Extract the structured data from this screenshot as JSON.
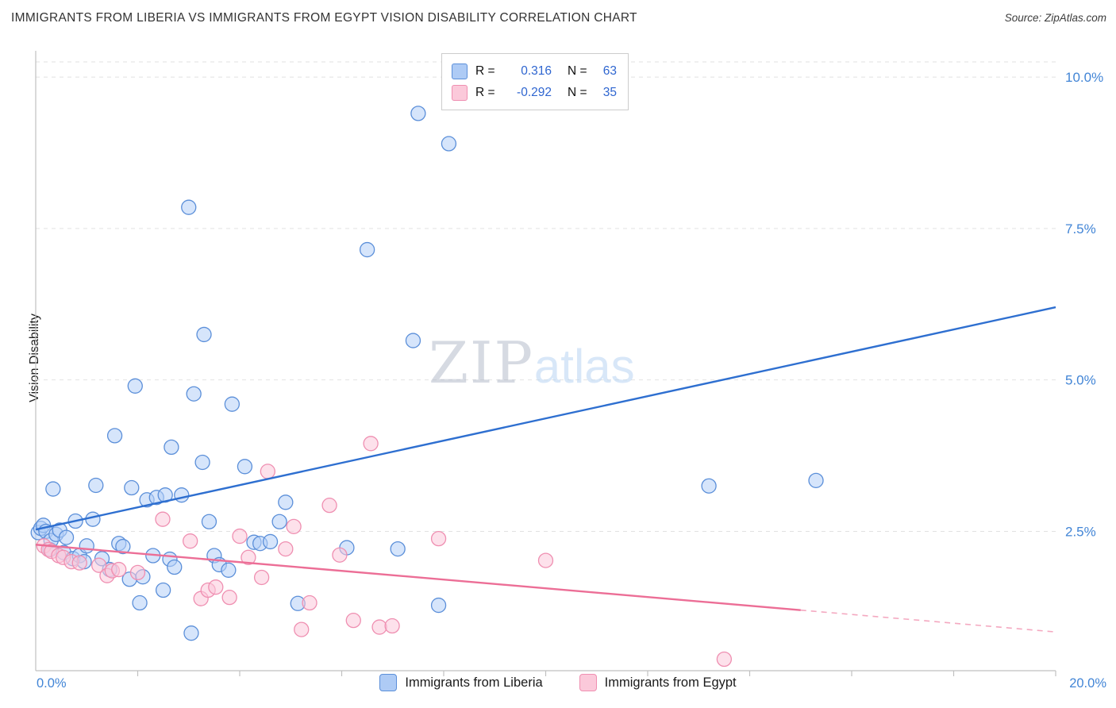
{
  "header": {
    "title": "IMMIGRANTS FROM LIBERIA VS IMMIGRANTS FROM EGYPT VISION DISABILITY CORRELATION CHART",
    "source": "Source: ZipAtlas.com"
  },
  "watermark": {
    "part1": "ZIP",
    "part2": "atlas"
  },
  "y_axis": {
    "label": "Vision Disability",
    "ticks": [
      {
        "label": "10.0%",
        "value": 10
      },
      {
        "label": "7.5%",
        "value": 7.5
      },
      {
        "label": "5.0%",
        "value": 5
      },
      {
        "label": "2.5%",
        "value": 2.5
      }
    ]
  },
  "x_axis": {
    "min_label": "0.0%",
    "max_label": "20.0%"
  },
  "legend_box": {
    "rows": [
      {
        "r_label": "R =",
        "r_value": "0.316",
        "n_label": "N =",
        "n_value": "63"
      },
      {
        "r_label": "R =",
        "r_value": "-0.292",
        "n_label": "N =",
        "n_value": "35"
      }
    ]
  },
  "bottom_legend": {
    "liberia_label": "Immigrants from Liberia",
    "egypt_label": "Immigrants from Egypt"
  },
  "colors": {
    "blue_fill": "#b4d0f7",
    "blue_stroke": "#5b8fd9",
    "blue_line": "#2e6fd0",
    "pink_fill": "#fbc9da",
    "pink_stroke": "#ef8fb1",
    "pink_line": "#ec6e96",
    "grid": "#e2e2e2",
    "axis": "#c0c0c0",
    "tick_text": "#4285d6"
  },
  "chart_data": {
    "type": "scatter",
    "xlabel": "",
    "ylabel": "Vision Disability",
    "xlim": [
      0,
      20
    ],
    "ylim": [
      0.2,
      10.25
    ],
    "grid": "horizontal-dashed",
    "series": [
      {
        "name": "Immigrants from Liberia",
        "r": 0.316,
        "n": 63,
        "points": [
          [
            0.05,
            2.48
          ],
          [
            0.1,
            2.55
          ],
          [
            0.15,
            2.6
          ],
          [
            0.2,
            2.5
          ],
          [
            0.28,
            2.2
          ],
          [
            0.3,
            2.35
          ],
          [
            0.34,
            3.2
          ],
          [
            0.4,
            2.45
          ],
          [
            0.47,
            2.52
          ],
          [
            0.55,
            2.15
          ],
          [
            0.6,
            2.4
          ],
          [
            0.73,
            2.05
          ],
          [
            0.78,
            2.67
          ],
          [
            0.86,
            2.1
          ],
          [
            0.95,
            2.0
          ],
          [
            1.0,
            2.26
          ],
          [
            1.12,
            2.7
          ],
          [
            1.18,
            3.26
          ],
          [
            1.3,
            2.05
          ],
          [
            1.45,
            1.87
          ],
          [
            1.55,
            4.08
          ],
          [
            1.63,
            2.3
          ],
          [
            1.71,
            2.25
          ],
          [
            1.84,
            1.71
          ],
          [
            1.88,
            3.22
          ],
          [
            1.95,
            4.9
          ],
          [
            2.04,
            1.32
          ],
          [
            2.1,
            1.75
          ],
          [
            2.18,
            3.02
          ],
          [
            2.3,
            2.1
          ],
          [
            2.37,
            3.06
          ],
          [
            2.5,
            1.53
          ],
          [
            2.54,
            3.1
          ],
          [
            2.63,
            2.04
          ],
          [
            2.66,
            3.89
          ],
          [
            2.72,
            1.91
          ],
          [
            2.86,
            3.1
          ],
          [
            3.0,
            7.85
          ],
          [
            3.05,
            0.82
          ],
          [
            3.1,
            4.77
          ],
          [
            3.27,
            3.64
          ],
          [
            3.3,
            5.75
          ],
          [
            3.4,
            2.66
          ],
          [
            3.5,
            2.1
          ],
          [
            3.6,
            1.95
          ],
          [
            3.78,
            1.86
          ],
          [
            3.85,
            4.6
          ],
          [
            4.1,
            3.57
          ],
          [
            4.28,
            2.32
          ],
          [
            4.4,
            2.3
          ],
          [
            4.6,
            2.33
          ],
          [
            4.78,
            2.66
          ],
          [
            4.9,
            2.98
          ],
          [
            5.14,
            1.31
          ],
          [
            6.1,
            2.23
          ],
          [
            6.5,
            7.15
          ],
          [
            7.1,
            2.21
          ],
          [
            7.4,
            5.65
          ],
          [
            7.5,
            9.4
          ],
          [
            7.9,
            1.28
          ],
          [
            8.1,
            8.9
          ],
          [
            13.2,
            3.25
          ],
          [
            15.3,
            3.34
          ]
        ],
        "trend": {
          "x0": 0,
          "y0": 2.53,
          "x1": 20,
          "y1": 6.2,
          "solid_until_x": 20
        }
      },
      {
        "name": "Immigrants from Egypt",
        "r": -0.292,
        "n": 35,
        "points": [
          [
            0.16,
            2.26
          ],
          [
            0.25,
            2.2
          ],
          [
            0.31,
            2.17
          ],
          [
            0.45,
            2.1
          ],
          [
            0.54,
            2.07
          ],
          [
            0.7,
            2.0
          ],
          [
            0.86,
            1.98
          ],
          [
            1.24,
            1.94
          ],
          [
            1.4,
            1.77
          ],
          [
            1.5,
            1.85
          ],
          [
            1.63,
            1.87
          ],
          [
            2.0,
            1.82
          ],
          [
            2.49,
            2.7
          ],
          [
            3.03,
            2.34
          ],
          [
            3.24,
            1.39
          ],
          [
            3.38,
            1.53
          ],
          [
            3.53,
            1.58
          ],
          [
            3.8,
            1.41
          ],
          [
            4.0,
            2.42
          ],
          [
            4.17,
            2.07
          ],
          [
            4.43,
            1.74
          ],
          [
            4.55,
            3.49
          ],
          [
            4.9,
            2.21
          ],
          [
            5.06,
            2.58
          ],
          [
            5.21,
            0.88
          ],
          [
            5.37,
            1.32
          ],
          [
            5.76,
            2.93
          ],
          [
            5.96,
            2.11
          ],
          [
            6.23,
            1.03
          ],
          [
            6.57,
            3.95
          ],
          [
            6.74,
            0.92
          ],
          [
            6.99,
            0.94
          ],
          [
            7.9,
            2.38
          ],
          [
            10.0,
            2.02
          ],
          [
            13.5,
            0.39
          ]
        ],
        "trend": {
          "x0": 0,
          "y0": 2.28,
          "x1": 20,
          "y1": 0.84,
          "solid_until_x": 15
        }
      }
    ]
  }
}
